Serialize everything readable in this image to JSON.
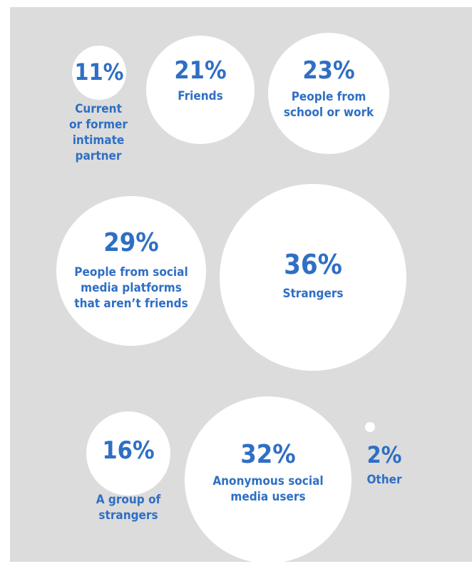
{
  "chart_data": {
    "type": "bubble",
    "items": [
      {
        "id": "partner",
        "value": 11,
        "value_label": "11%",
        "label_lines": [
          "Current",
          "or former",
          "intimate",
          "partner"
        ]
      },
      {
        "id": "friends",
        "value": 21,
        "value_label": "21%",
        "label_lines": [
          "Friends"
        ]
      },
      {
        "id": "school",
        "value": 23,
        "value_label": "23%",
        "label_lines": [
          "People from",
          "school or work"
        ]
      },
      {
        "id": "social",
        "value": 29,
        "value_label": "29%",
        "label_lines": [
          "People from social",
          "media platforms",
          "that aren’t friends"
        ]
      },
      {
        "id": "strangers",
        "value": 36,
        "value_label": "36%",
        "label_lines": [
          "Strangers"
        ]
      },
      {
        "id": "group",
        "value": 16,
        "value_label": "16%",
        "label_lines": [
          "A group of",
          "strangers"
        ]
      },
      {
        "id": "anon",
        "value": 32,
        "value_label": "32%",
        "label_lines": [
          "Anonymous social",
          "media users"
        ]
      },
      {
        "id": "other",
        "value": 2,
        "value_label": "2%",
        "label_lines": [
          "Other"
        ]
      }
    ]
  },
  "colors": {
    "background": "#dcdcdc",
    "bubble": "#ffffff",
    "text": "#2f6fc4"
  }
}
